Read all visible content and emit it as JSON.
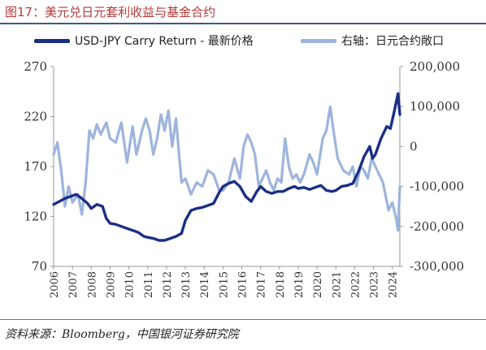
{
  "figure": {
    "title": "图17：美元兑日元套利收益与基金合约",
    "source": "资料来源：Bloomberg，中国银河证券研究院"
  },
  "colors": {
    "title": "#b23a3a",
    "series_main": "#1b2f86",
    "series_secondary": "#9db4dd",
    "axis": "#999999",
    "rule": "#3d5a8a"
  },
  "chart_data": {
    "type": "line",
    "title": "",
    "legend_position": "top",
    "grid": false,
    "x_axis": {
      "type": "year",
      "range": [
        2006,
        2024.4
      ],
      "ticks": [
        "2006",
        "2007",
        "2008",
        "2009",
        "2010",
        "2011",
        "2012",
        "2013",
        "2014",
        "2015",
        "2016",
        "2017",
        "2018",
        "2019",
        "2020",
        "2021",
        "2022",
        "2023",
        "2024"
      ]
    },
    "y_left": {
      "range": [
        70,
        270
      ],
      "ticks": [
        "70",
        "120",
        "170",
        "220",
        "270"
      ]
    },
    "y_right": {
      "range": [
        -300000,
        200000
      ],
      "ticks": [
        "-300,000",
        "-200,000",
        "-100,000",
        "0",
        "100,000",
        "200,000"
      ]
    },
    "series": [
      {
        "name": "USD-JPY Carry Return - 最新价格",
        "axis": "left",
        "color": "#1b2f86",
        "points": [
          [
            2006.0,
            132
          ],
          [
            2006.3,
            135
          ],
          [
            2006.6,
            138
          ],
          [
            2006.9,
            140
          ],
          [
            2007.2,
            142
          ],
          [
            2007.5,
            138
          ],
          [
            2007.8,
            133
          ],
          [
            2008.0,
            128
          ],
          [
            2008.3,
            132
          ],
          [
            2008.6,
            130
          ],
          [
            2008.8,
            118
          ],
          [
            2009.0,
            113
          ],
          [
            2009.3,
            112
          ],
          [
            2009.6,
            110
          ],
          [
            2009.9,
            108
          ],
          [
            2010.2,
            106
          ],
          [
            2010.5,
            104
          ],
          [
            2010.8,
            100
          ],
          [
            2011.0,
            99
          ],
          [
            2011.3,
            98
          ],
          [
            2011.6,
            96
          ],
          [
            2011.9,
            96
          ],
          [
            2012.2,
            98
          ],
          [
            2012.5,
            100
          ],
          [
            2012.8,
            103
          ],
          [
            2013.0,
            116
          ],
          [
            2013.3,
            126
          ],
          [
            2013.6,
            128
          ],
          [
            2013.9,
            129
          ],
          [
            2014.2,
            131
          ],
          [
            2014.5,
            133
          ],
          [
            2014.8,
            144
          ],
          [
            2015.0,
            150
          ],
          [
            2015.3,
            153
          ],
          [
            2015.6,
            155
          ],
          [
            2015.9,
            150
          ],
          [
            2016.2,
            140
          ],
          [
            2016.5,
            135
          ],
          [
            2016.8,
            145
          ],
          [
            2017.0,
            150
          ],
          [
            2017.3,
            145
          ],
          [
            2017.6,
            143
          ],
          [
            2017.9,
            145
          ],
          [
            2018.2,
            145
          ],
          [
            2018.5,
            148
          ],
          [
            2018.8,
            150
          ],
          [
            2019.0,
            148
          ],
          [
            2019.3,
            149
          ],
          [
            2019.6,
            147
          ],
          [
            2019.9,
            149
          ],
          [
            2020.2,
            151
          ],
          [
            2020.5,
            146
          ],
          [
            2020.8,
            145
          ],
          [
            2021.0,
            146
          ],
          [
            2021.3,
            150
          ],
          [
            2021.6,
            151
          ],
          [
            2021.9,
            153
          ],
          [
            2022.2,
            165
          ],
          [
            2022.5,
            180
          ],
          [
            2022.8,
            190
          ],
          [
            2022.95,
            178
          ],
          [
            2023.1,
            182
          ],
          [
            2023.4,
            198
          ],
          [
            2023.7,
            210
          ],
          [
            2023.9,
            208
          ],
          [
            2024.1,
            225
          ],
          [
            2024.3,
            243
          ],
          [
            2024.4,
            222
          ]
        ]
      },
      {
        "name": "右轴：日元合约敞口",
        "axis": "right",
        "color": "#9db4dd",
        "points": [
          [
            2006.0,
            -20000
          ],
          [
            2006.2,
            10000
          ],
          [
            2006.4,
            -60000
          ],
          [
            2006.6,
            -150000
          ],
          [
            2006.8,
            -100000
          ],
          [
            2007.0,
            -140000
          ],
          [
            2007.3,
            -120000
          ],
          [
            2007.5,
            -170000
          ],
          [
            2007.7,
            -90000
          ],
          [
            2007.9,
            40000
          ],
          [
            2008.1,
            20000
          ],
          [
            2008.3,
            55000
          ],
          [
            2008.5,
            30000
          ],
          [
            2008.8,
            60000
          ],
          [
            2009.0,
            20000
          ],
          [
            2009.3,
            10000
          ],
          [
            2009.6,
            60000
          ],
          [
            2009.9,
            -40000
          ],
          [
            2010.2,
            50000
          ],
          [
            2010.4,
            -20000
          ],
          [
            2010.7,
            40000
          ],
          [
            2010.9,
            70000
          ],
          [
            2011.1,
            40000
          ],
          [
            2011.3,
            -20000
          ],
          [
            2011.5,
            20000
          ],
          [
            2011.7,
            80000
          ],
          [
            2011.9,
            40000
          ],
          [
            2012.1,
            90000
          ],
          [
            2012.3,
            0
          ],
          [
            2012.5,
            70000
          ],
          [
            2012.8,
            -90000
          ],
          [
            2013.0,
            -80000
          ],
          [
            2013.3,
            -120000
          ],
          [
            2013.6,
            -90000
          ],
          [
            2013.9,
            -100000
          ],
          [
            2014.2,
            -60000
          ],
          [
            2014.5,
            -70000
          ],
          [
            2014.8,
            -110000
          ],
          [
            2015.0,
            -110000
          ],
          [
            2015.3,
            -90000
          ],
          [
            2015.6,
            -30000
          ],
          [
            2015.9,
            -80000
          ],
          [
            2016.1,
            0
          ],
          [
            2016.3,
            30000
          ],
          [
            2016.5,
            10000
          ],
          [
            2016.7,
            -20000
          ],
          [
            2016.9,
            -100000
          ],
          [
            2017.1,
            -80000
          ],
          [
            2017.3,
            -60000
          ],
          [
            2017.5,
            -90000
          ],
          [
            2017.7,
            -110000
          ],
          [
            2017.9,
            -80000
          ],
          [
            2018.1,
            -90000
          ],
          [
            2018.3,
            20000
          ],
          [
            2018.5,
            -50000
          ],
          [
            2018.7,
            -80000
          ],
          [
            2018.9,
            -70000
          ],
          [
            2019.1,
            -90000
          ],
          [
            2019.3,
            -70000
          ],
          [
            2019.6,
            -20000
          ],
          [
            2019.8,
            -40000
          ],
          [
            2020.0,
            -70000
          ],
          [
            2020.3,
            20000
          ],
          [
            2020.5,
            40000
          ],
          [
            2020.7,
            100000
          ],
          [
            2020.9,
            30000
          ],
          [
            2021.1,
            -30000
          ],
          [
            2021.4,
            -60000
          ],
          [
            2021.7,
            -70000
          ],
          [
            2021.9,
            -50000
          ],
          [
            2022.1,
            -100000
          ],
          [
            2022.3,
            -50000
          ],
          [
            2022.5,
            -60000
          ],
          [
            2022.7,
            -80000
          ],
          [
            2022.9,
            -30000
          ],
          [
            2023.1,
            -50000
          ],
          [
            2023.3,
            -70000
          ],
          [
            2023.5,
            -90000
          ],
          [
            2023.8,
            -160000
          ],
          [
            2024.0,
            -140000
          ],
          [
            2024.2,
            -180000
          ],
          [
            2024.3,
            -210000
          ],
          [
            2024.4,
            -100000
          ]
        ]
      }
    ]
  }
}
